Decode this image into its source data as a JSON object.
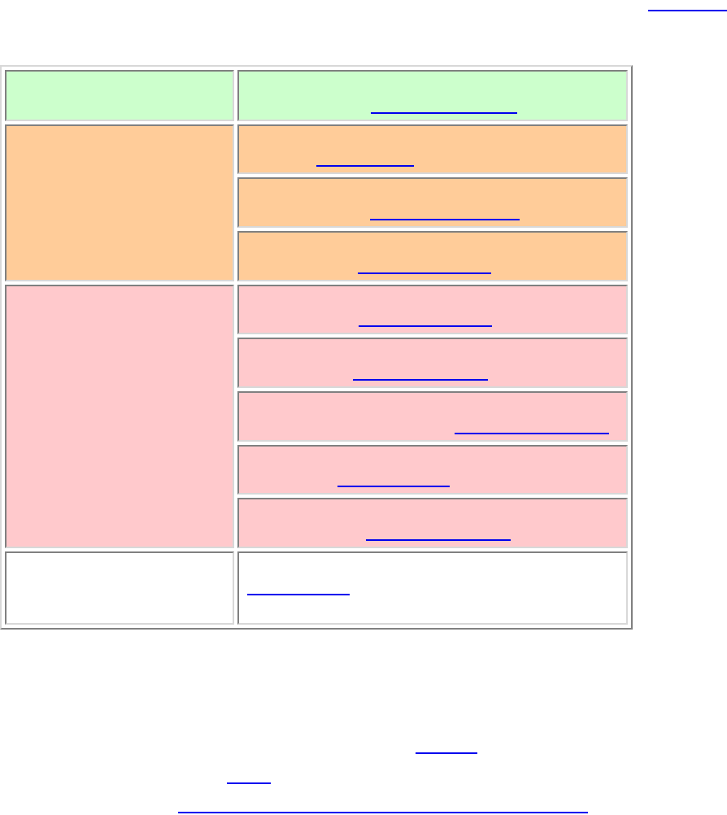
{
  "page": {
    "top_right_link": "",
    "bottom_links": [
      "",
      "",
      ""
    ]
  },
  "table": {
    "groups": [
      {
        "color": "#ccffcc",
        "label": "",
        "items": [
          ""
        ]
      },
      {
        "color": "#ffcc99",
        "label": "",
        "items": [
          "",
          "",
          ""
        ]
      },
      {
        "color": "#ffc9cc",
        "label": "",
        "items": [
          "",
          "",
          "",
          "",
          ""
        ]
      },
      {
        "color": "#ffffff",
        "label": "",
        "items": [
          ""
        ]
      }
    ]
  }
}
